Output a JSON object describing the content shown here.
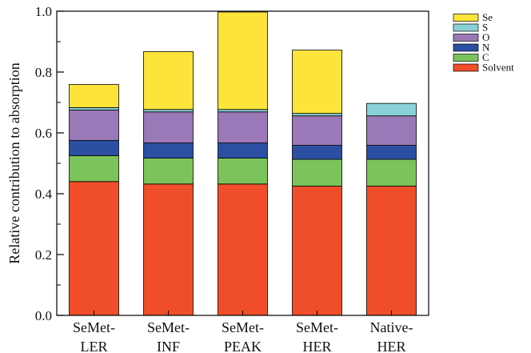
{
  "chart_data": {
    "type": "bar",
    "stacked": true,
    "categories": [
      [
        "SeMet-",
        "LER"
      ],
      [
        "SeMet-",
        "INF"
      ],
      [
        "SeMet-",
        "PEAK"
      ],
      [
        "SeMet-",
        "HER"
      ],
      [
        "Native-",
        "HER"
      ]
    ],
    "series": [
      {
        "name": "Solvent",
        "color": "#f04e2a",
        "values": [
          0.44,
          0.432,
          0.432,
          0.425,
          0.425
        ]
      },
      {
        "name": "C",
        "color": "#7dc35b",
        "values": [
          0.085,
          0.085,
          0.085,
          0.088,
          0.088
        ]
      },
      {
        "name": "N",
        "color": "#2c4fa3",
        "values": [
          0.05,
          0.05,
          0.05,
          0.046,
          0.046
        ]
      },
      {
        "name": "O",
        "color": "#9b78b7",
        "values": [
          0.1,
          0.102,
          0.102,
          0.097,
          0.097
        ]
      },
      {
        "name": "S",
        "color": "#89d3d8",
        "values": [
          0.008,
          0.008,
          0.008,
          0.008,
          0.041
        ]
      },
      {
        "name": "Se",
        "color": "#fde43a",
        "values": [
          0.076,
          0.19,
          0.343,
          0.208,
          0
        ]
      }
    ],
    "legend_order": [
      "Se",
      "S",
      "O",
      "N",
      "C",
      "Solvent"
    ],
    "legend_position": "top-right",
    "ylabel": "Relative contribution to absorption",
    "xlabel": "",
    "ylim": [
      0,
      1.0
    ],
    "yticks": [
      "0.0",
      "0.2",
      "0.4",
      "0.6",
      "0.8",
      "1.0"
    ],
    "ytick_values": [
      0,
      0.2,
      0.4,
      0.6,
      0.8,
      1.0
    ],
    "grid": false
  }
}
